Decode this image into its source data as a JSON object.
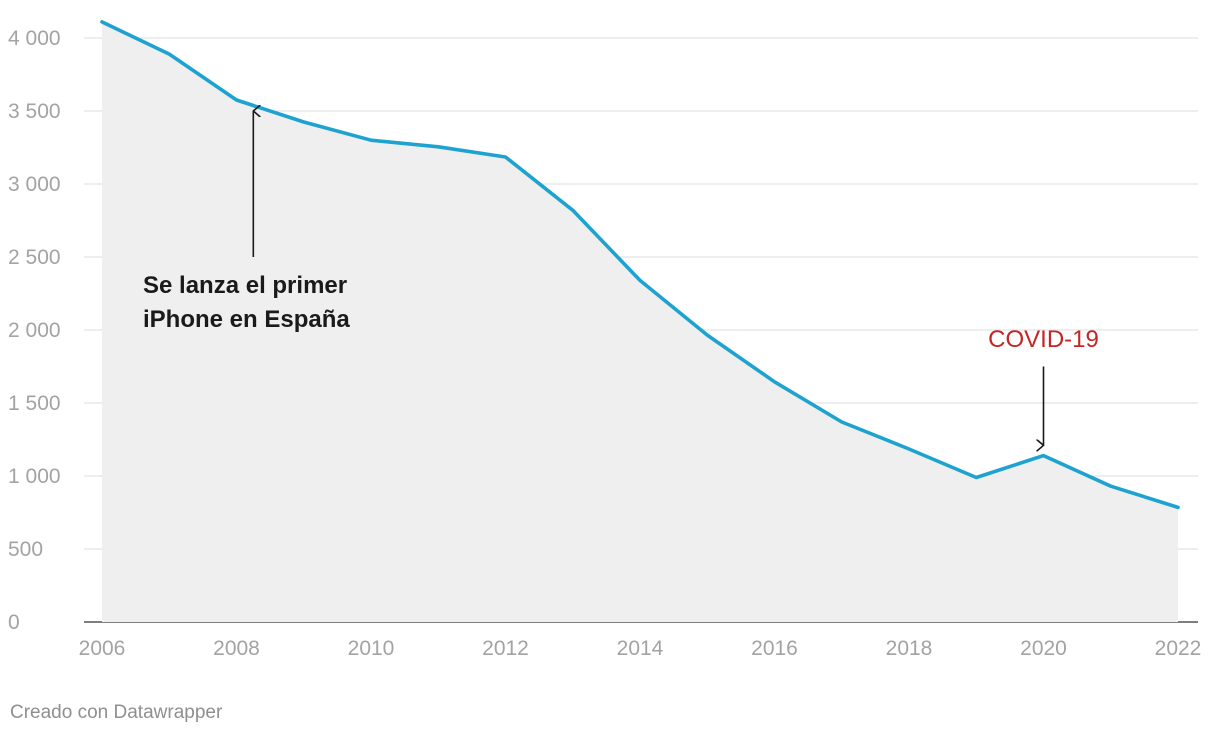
{
  "chart_data": {
    "type": "area",
    "x": [
      2006,
      2007,
      2008,
      2009,
      2010,
      2011,
      2012,
      2013,
      2014,
      2015,
      2016,
      2017,
      2018,
      2019,
      2020,
      2021,
      2022
    ],
    "series": [
      {
        "values": [
          4110,
          3890,
          3575,
          3425,
          3300,
          3255,
          3185,
          2820,
          2340,
          1965,
          1645,
          1370,
          1185,
          990,
          1140,
          930,
          785
        ],
        "color": "#1ea3d1"
      }
    ],
    "fill_color": "#efefef",
    "xlim": [
      2006,
      2022
    ],
    "ylim": [
      0,
      4000
    ],
    "x_ticks": [
      "2006",
      "2008",
      "2010",
      "2012",
      "2014",
      "2016",
      "2018",
      "2020",
      "2022"
    ],
    "y_ticks": [
      "0",
      "500",
      "1 000",
      "1 500",
      "2 000",
      "2 500",
      "3 000",
      "3 500",
      "4 000"
    ],
    "grid": true,
    "annotations": [
      {
        "lines": [
          "Se lanza el primer",
          "iPhone en España"
        ],
        "x": 2008.25,
        "arrow_from": 2500,
        "arrow_to": 3500,
        "color": "#1a1a1a",
        "bold": true
      },
      {
        "lines": [
          "COVID-19"
        ],
        "x": 2020,
        "arrow_from": 1750,
        "arrow_to": 1210,
        "color": "#c42525",
        "bold": false
      }
    ]
  },
  "footer": {
    "credit": "Creado con Datawrapper"
  }
}
